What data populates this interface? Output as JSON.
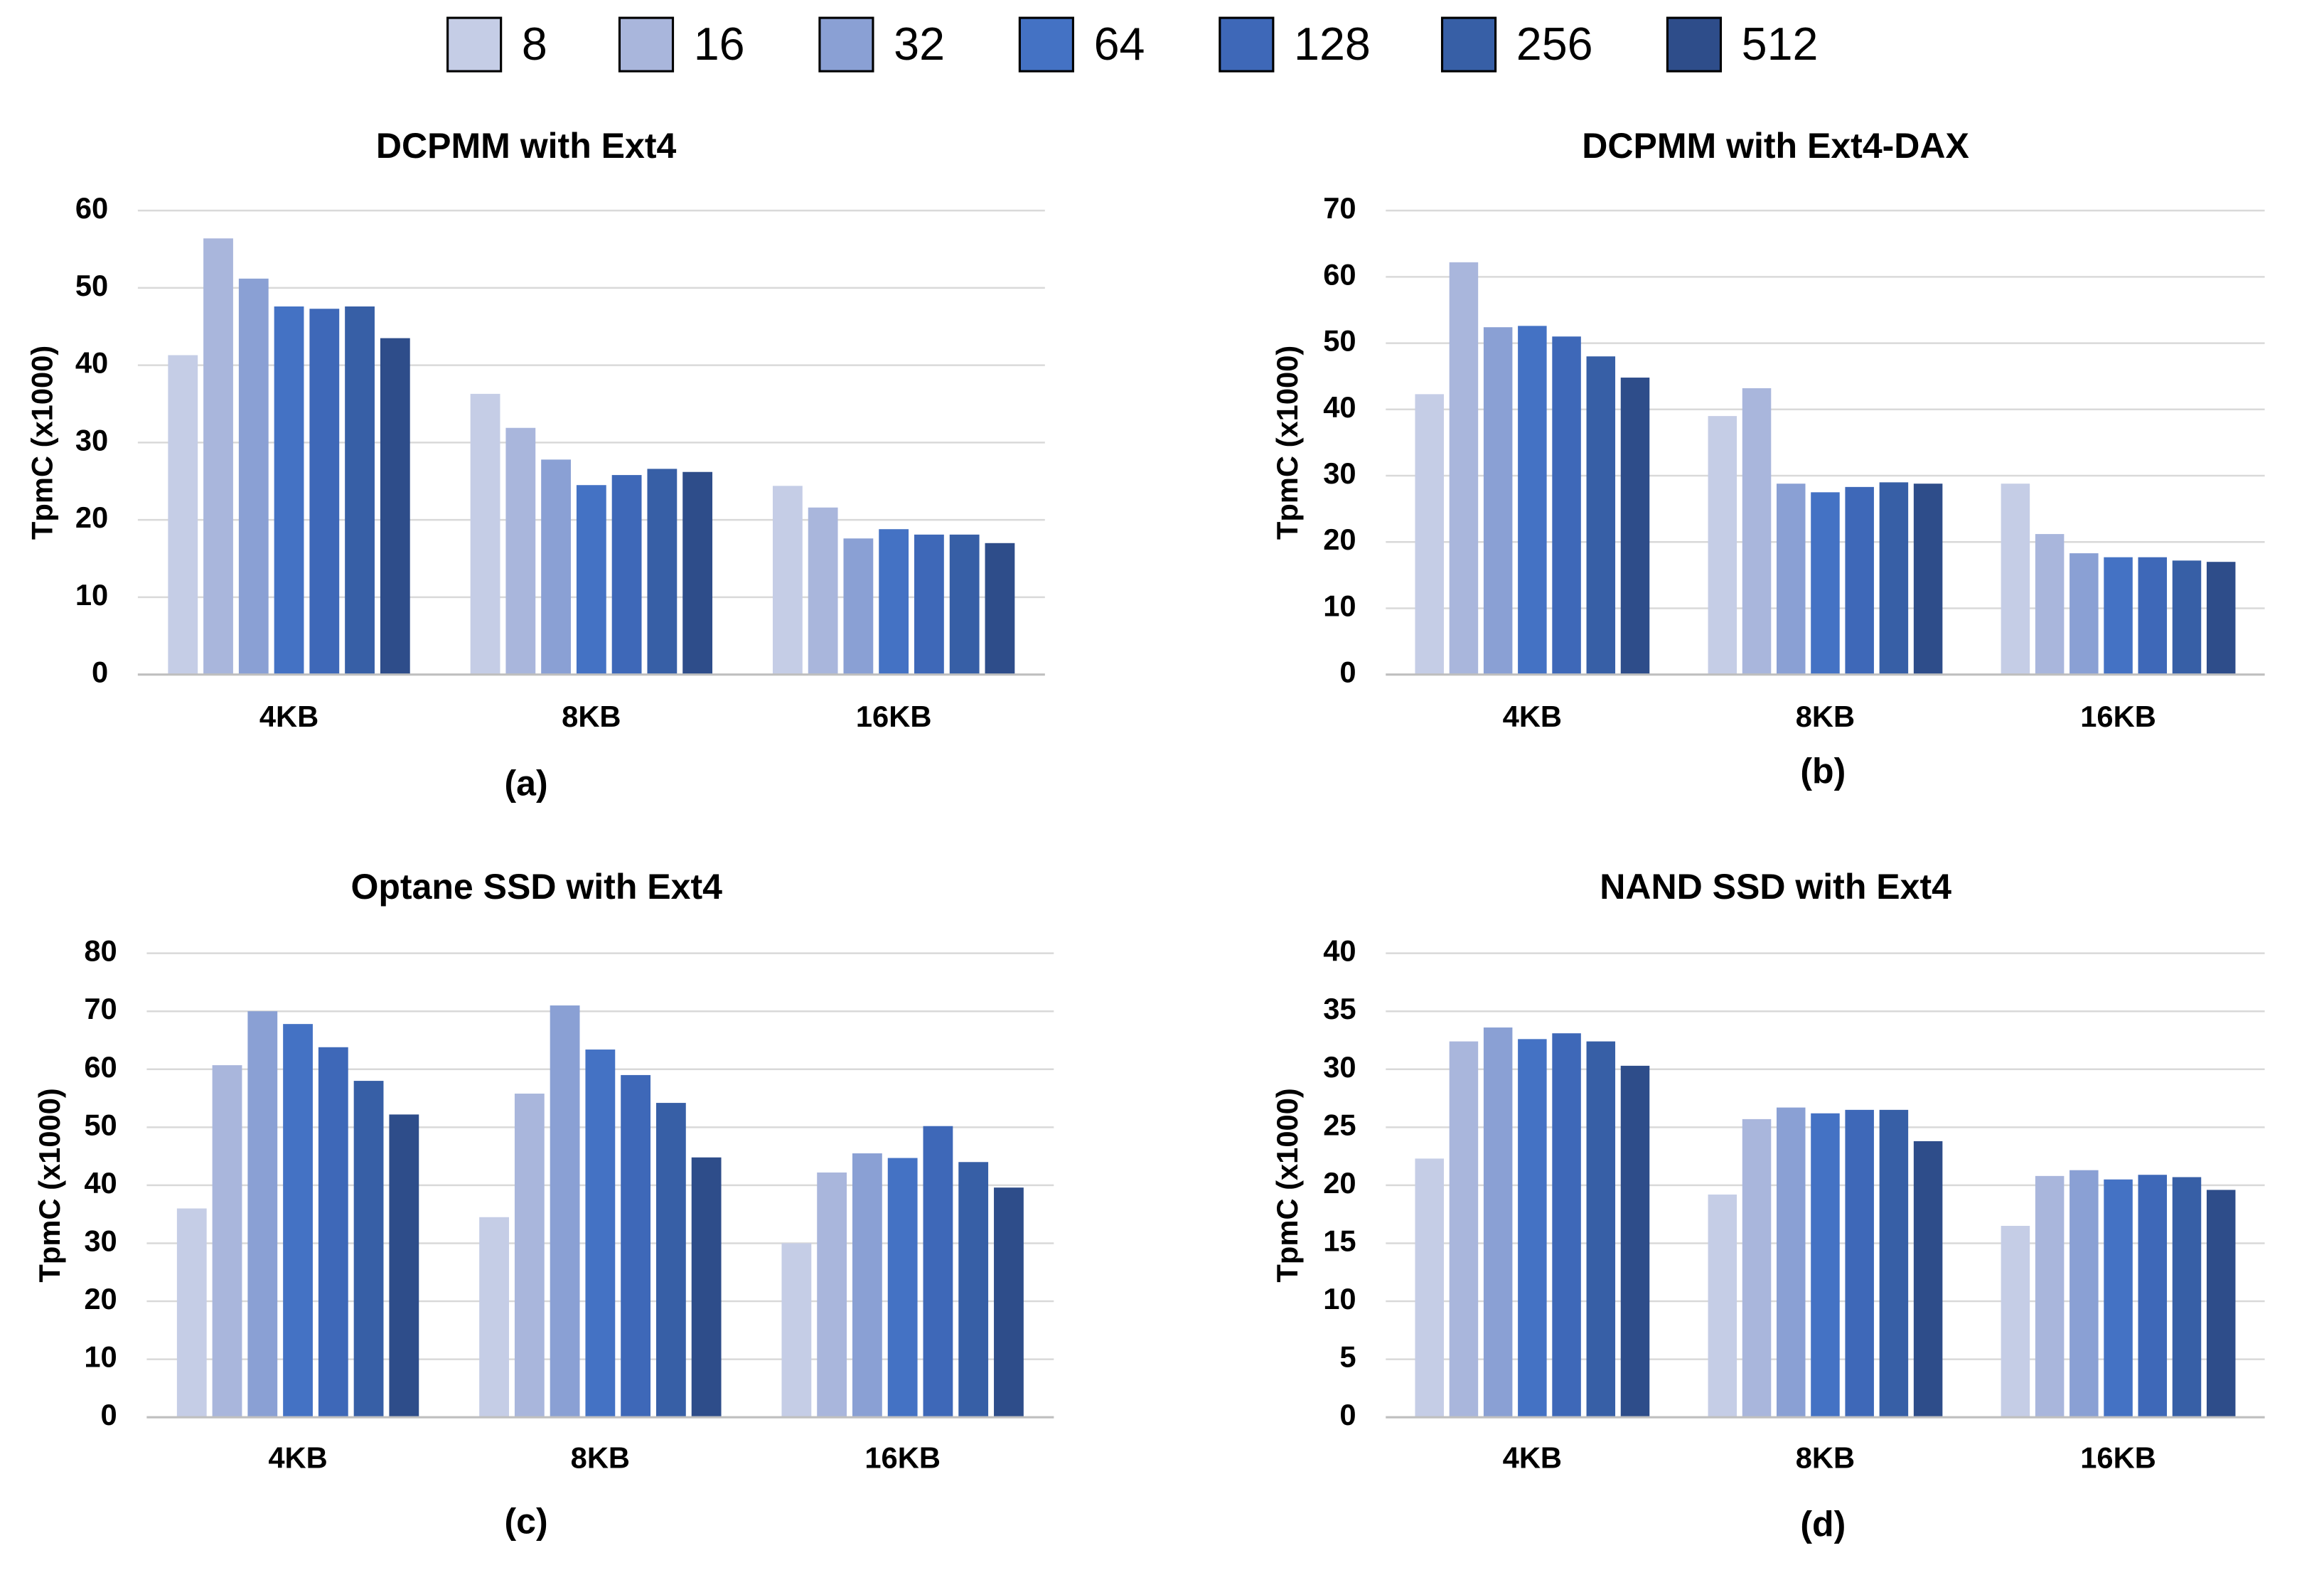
{
  "chart_data": [
    {
      "type": "bar",
      "title": "DCPMM with Ext4",
      "caption": "(a)",
      "y_label": "TpmC (x1000)",
      "categories": [
        "4KB",
        "8KB",
        "16KB"
      ],
      "ylim": [
        0,
        60
      ],
      "yticks": [
        0,
        10,
        20,
        30,
        40,
        50,
        60
      ],
      "series": [
        {
          "name": "8",
          "color": "#c5cde6",
          "values": [
            41.3,
            36.3,
            24.4
          ]
        },
        {
          "name": "16",
          "color": "#a9b6dc",
          "values": [
            56.4,
            31.9,
            21.6
          ]
        },
        {
          "name": "32",
          "color": "#8aa0d4",
          "values": [
            51.2,
            27.8,
            17.6
          ]
        },
        {
          "name": "64",
          "color": "#4472c4",
          "values": [
            47.6,
            24.5,
            18.8
          ]
        },
        {
          "name": "128",
          "color": "#3e68b8",
          "values": [
            47.3,
            25.8,
            18.1
          ]
        },
        {
          "name": "256",
          "color": "#375fa6",
          "values": [
            47.6,
            26.6,
            18.1
          ]
        },
        {
          "name": "512",
          "color": "#2e4d8a",
          "values": [
            43.5,
            26.2,
            17.0
          ]
        }
      ]
    },
    {
      "type": "bar",
      "title": "DCPMM with Ext4-DAX",
      "caption": "(b)",
      "y_label": "TpmC (x1000)",
      "categories": [
        "4KB",
        "8KB",
        "16KB"
      ],
      "ylim": [
        0,
        70
      ],
      "yticks": [
        0,
        10,
        20,
        30,
        40,
        50,
        60,
        70
      ],
      "series": [
        {
          "name": "8",
          "color": "#c5cde6",
          "values": [
            42.3,
            39.0,
            28.8
          ]
        },
        {
          "name": "16",
          "color": "#a9b6dc",
          "values": [
            62.2,
            43.2,
            21.2
          ]
        },
        {
          "name": "32",
          "color": "#8aa0d4",
          "values": [
            52.4,
            28.8,
            18.3
          ]
        },
        {
          "name": "64",
          "color": "#4472c4",
          "values": [
            52.6,
            27.5,
            17.7
          ]
        },
        {
          "name": "128",
          "color": "#3e68b8",
          "values": [
            51.0,
            28.3,
            17.7
          ]
        },
        {
          "name": "256",
          "color": "#375fa6",
          "values": [
            48.0,
            29.0,
            17.2
          ]
        },
        {
          "name": "512",
          "color": "#2e4d8a",
          "values": [
            44.8,
            28.8,
            17.0
          ]
        }
      ]
    },
    {
      "type": "bar",
      "title": "Optane SSD with Ext4",
      "caption": "(c)",
      "y_label": "TpmC (x1000)",
      "categories": [
        "4KB",
        "8KB",
        "16KB"
      ],
      "ylim": [
        0,
        80
      ],
      "yticks": [
        0,
        10,
        20,
        30,
        40,
        50,
        60,
        70,
        80
      ],
      "series": [
        {
          "name": "8",
          "color": "#c5cde6",
          "values": [
            36.0,
            34.5,
            30.0
          ]
        },
        {
          "name": "16",
          "color": "#a9b6dc",
          "values": [
            60.7,
            55.8,
            42.2
          ]
        },
        {
          "name": "32",
          "color": "#8aa0d4",
          "values": [
            70.0,
            71.0,
            45.5
          ]
        },
        {
          "name": "64",
          "color": "#4472c4",
          "values": [
            67.8,
            63.4,
            44.7
          ]
        },
        {
          "name": "128",
          "color": "#3e68b8",
          "values": [
            63.8,
            59.0,
            50.2
          ]
        },
        {
          "name": "256",
          "color": "#375fa6",
          "values": [
            58.0,
            54.2,
            44.0
          ]
        },
        {
          "name": "512",
          "color": "#2e4d8a",
          "values": [
            52.2,
            44.8,
            39.6
          ]
        }
      ]
    },
    {
      "type": "bar",
      "title": "NAND SSD with Ext4",
      "caption": "(d)",
      "y_label": "TpmC (x1000)",
      "categories": [
        "4KB",
        "8KB",
        "16KB"
      ],
      "ylim": [
        0,
        40
      ],
      "yticks": [
        0,
        5,
        10,
        15,
        20,
        25,
        30,
        35,
        40
      ],
      "series": [
        {
          "name": "8",
          "color": "#c5cde6",
          "values": [
            22.3,
            19.2,
            16.5
          ]
        },
        {
          "name": "16",
          "color": "#a9b6dc",
          "values": [
            32.4,
            25.7,
            20.8
          ]
        },
        {
          "name": "32",
          "color": "#8aa0d4",
          "values": [
            33.6,
            26.7,
            21.3
          ]
        },
        {
          "name": "64",
          "color": "#4472c4",
          "values": [
            32.6,
            26.2,
            20.5
          ]
        },
        {
          "name": "128",
          "color": "#3e68b8",
          "values": [
            33.1,
            26.5,
            20.9
          ]
        },
        {
          "name": "256",
          "color": "#375fa6",
          "values": [
            32.4,
            26.5,
            20.7
          ]
        },
        {
          "name": "512",
          "color": "#2e4d8a",
          "values": [
            30.3,
            23.8,
            19.6
          ]
        }
      ]
    }
  ]
}
